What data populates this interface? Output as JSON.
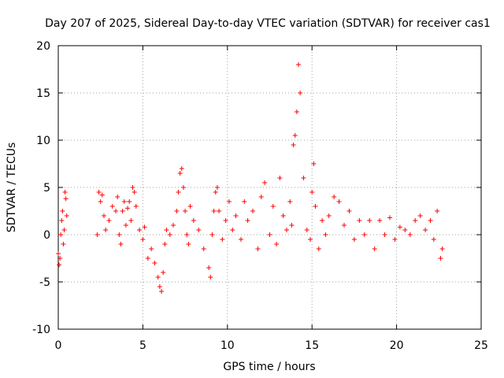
{
  "chart_data": {
    "type": "scatter",
    "title": "Day 207 of 2025, Sidereal Day-to-day VTEC variation (SDTVAR) for receiver cas1",
    "xlabel": "GPS time / hours",
    "ylabel": "SDTVAR / TECUs",
    "xlim": [
      0,
      25
    ],
    "ylim": [
      -10,
      20
    ],
    "xticks": [
      "0",
      "5",
      "10",
      "15",
      "20",
      "25"
    ],
    "yticks": [
      "-10",
      "-5",
      "0",
      "5",
      "10",
      "15",
      "20"
    ],
    "grid": true,
    "marker": "+",
    "color": "#ff0000",
    "series": [
      {
        "name": "SDTVAR",
        "x": [
          0.0,
          0.05,
          0.1,
          0.15,
          0.2,
          0.25,
          0.3,
          0.35,
          0.4,
          0.45,
          0.5,
          2.3,
          2.4,
          2.5,
          2.6,
          2.7,
          2.8,
          3.0,
          3.2,
          3.4,
          3.5,
          3.6,
          3.7,
          3.8,
          3.9,
          4.0,
          4.1,
          4.2,
          4.3,
          4.4,
          4.5,
          4.6,
          4.8,
          5.0,
          5.1,
          5.3,
          5.5,
          5.7,
          5.9,
          6.0,
          6.1,
          6.2,
          6.3,
          6.4,
          6.6,
          6.8,
          7.0,
          7.1,
          7.2,
          7.3,
          7.4,
          7.5,
          7.6,
          7.7,
          7.8,
          8.0,
          8.3,
          8.6,
          8.9,
          9.0,
          9.1,
          9.2,
          9.3,
          9.4,
          9.5,
          9.7,
          9.9,
          10.1,
          10.3,
          10.5,
          10.8,
          11.0,
          11.2,
          11.5,
          11.8,
          12.0,
          12.2,
          12.5,
          12.7,
          12.9,
          13.1,
          13.3,
          13.5,
          13.7,
          13.8,
          13.9,
          14.0,
          14.1,
          14.2,
          14.3,
          14.5,
          14.7,
          14.9,
          15.0,
          15.1,
          15.2,
          15.4,
          15.6,
          15.8,
          16.0,
          16.3,
          16.6,
          16.9,
          17.2,
          17.5,
          17.8,
          18.1,
          18.4,
          18.7,
          19.0,
          19.3,
          19.6,
          19.9,
          20.2,
          20.5,
          20.8,
          21.1,
          21.4,
          21.7,
          22.0,
          22.2,
          22.4,
          22.6,
          22.7
        ],
        "y": [
          -2.0,
          -3.2,
          -2.5,
          0.0,
          1.5,
          2.5,
          -1.0,
          0.5,
          4.5,
          3.8,
          2.0,
          0.0,
          4.5,
          3.5,
          4.2,
          2.0,
          0.5,
          1.5,
          3.0,
          2.5,
          4.0,
          0.0,
          -1.0,
          2.5,
          3.5,
          1.0,
          2.8,
          3.5,
          1.5,
          5.0,
          4.5,
          3.0,
          0.5,
          -0.5,
          0.8,
          -2.5,
          -1.5,
          -3.0,
          -4.5,
          -5.5,
          -6.0,
          -4.0,
          -1.0,
          0.5,
          0.0,
          1.0,
          2.5,
          4.5,
          6.5,
          7.0,
          5.0,
          2.5,
          0.0,
          -1.0,
          3.0,
          1.5,
          0.5,
          -1.5,
          -3.5,
          -4.5,
          0.0,
          2.5,
          4.5,
          5.0,
          2.5,
          -0.5,
          1.5,
          3.5,
          0.5,
          2.0,
          -0.5,
          3.5,
          1.5,
          2.5,
          -1.5,
          4.0,
          5.5,
          0.0,
          3.0,
          -1.0,
          6.0,
          2.0,
          0.5,
          3.5,
          1.0,
          9.5,
          10.5,
          13.0,
          18.0,
          15.0,
          6.0,
          0.5,
          -0.5,
          4.5,
          7.5,
          3.0,
          -1.5,
          1.5,
          0.0,
          2.0,
          4.0,
          3.5,
          1.0,
          2.5,
          -0.5,
          1.5,
          0.0,
          1.5,
          -1.5,
          1.5,
          0.0,
          1.8,
          -0.5,
          0.8,
          0.5,
          0.0,
          1.5,
          2.0,
          0.5,
          1.5,
          -0.5,
          2.5,
          -2.5,
          -1.5
        ]
      }
    ]
  }
}
